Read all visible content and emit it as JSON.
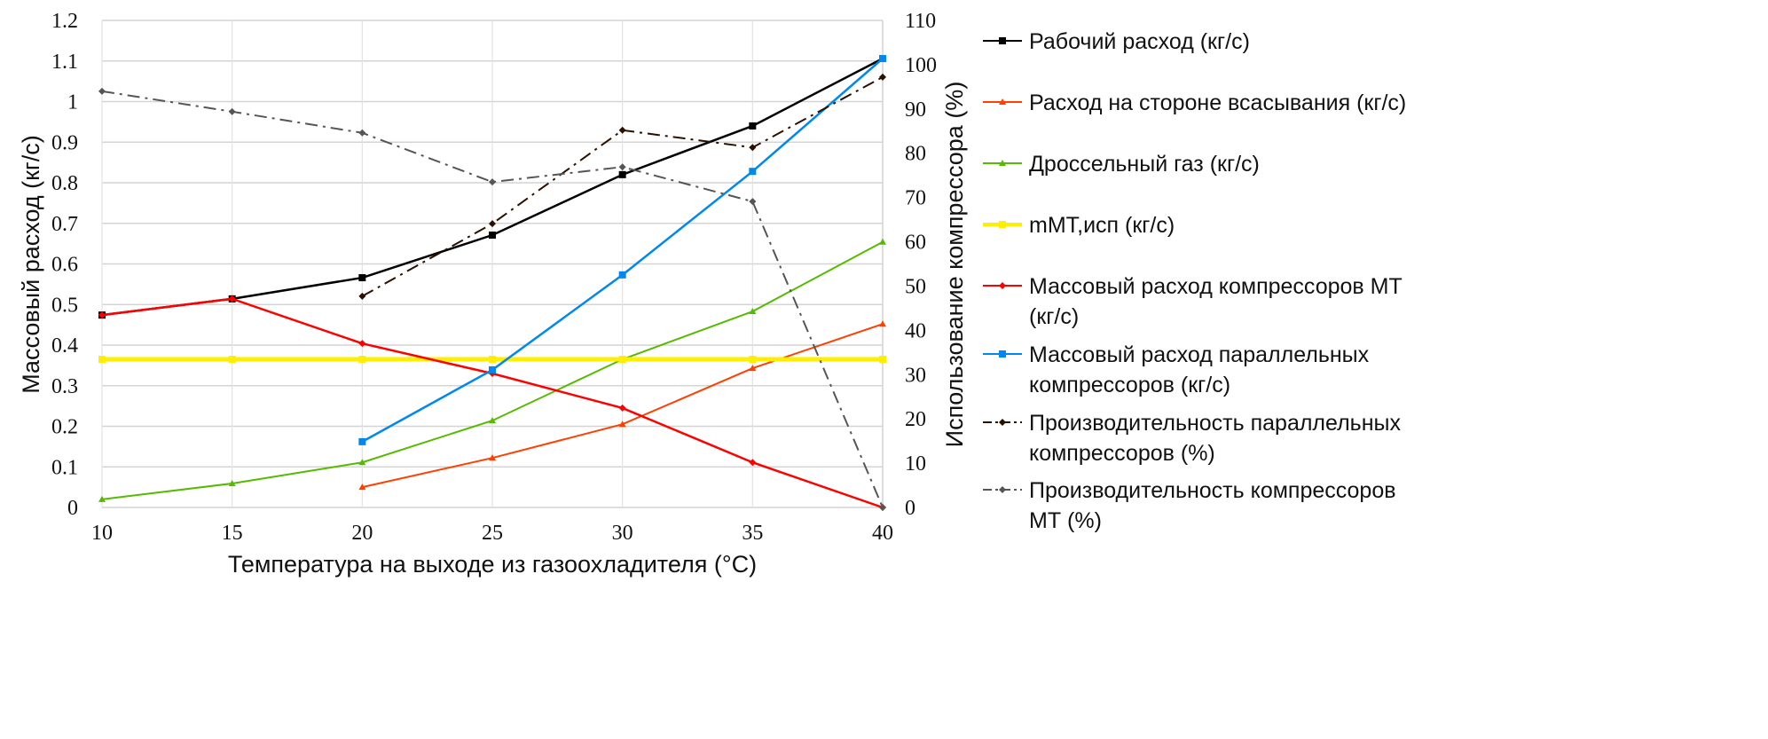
{
  "chart_data": {
    "type": "line",
    "title": "",
    "xlabel": "Температура на выходе из газоохладителя (°C)",
    "ylabel": "Массовый расход (кг/с)",
    "y2label": "Использование компрессора (%)",
    "x": [
      10,
      15,
      20,
      25,
      30,
      35,
      40
    ],
    "xlim": [
      10,
      40
    ],
    "ylim": [
      0,
      1.2
    ],
    "y2lim": [
      0,
      110
    ],
    "xticks": [
      "10",
      "15",
      "20",
      "25",
      "30",
      "35",
      "40"
    ],
    "yticks": [
      "0",
      "0.1",
      "0.2",
      "0.3",
      "0.4",
      "0.5",
      "0.6",
      "0.7",
      "0.8",
      "0.9",
      "1",
      "1.1",
      "1.2"
    ],
    "y2ticks": [
      "0",
      "10",
      "20",
      "30",
      "40",
      "50",
      "60",
      "70",
      "80",
      "90",
      "100",
      "110"
    ],
    "grid": true,
    "legend_position": "right",
    "series": [
      {
        "name": "Рабочий расход (кг/с)",
        "axis": "left",
        "color": "#000000",
        "marker": "square",
        "dash": "",
        "values": [
          0.474,
          0.514,
          0.566,
          0.671,
          0.82,
          0.94,
          1.106
        ]
      },
      {
        "name": "Расход на стороне всасывания (кг/с)",
        "axis": "left",
        "color": "#ff4000",
        "marker": "triangle",
        "dash": "",
        "values": [
          null,
          null,
          0.05,
          0.122,
          0.205,
          0.343,
          0.452
        ]
      },
      {
        "name": "Дроссельный газ (кг/с)",
        "axis": "left",
        "color": "#55bb00",
        "marker": "triangle",
        "dash": "",
        "values": [
          0.02,
          0.059,
          0.111,
          0.214,
          0.365,
          0.483,
          0.654
        ]
      },
      {
        "name": "mМТ,исп (кг/с)",
        "axis": "left",
        "color": "#ffee00",
        "marker": "square",
        "dash": "",
        "values": [
          0.365,
          0.365,
          0.365,
          0.365,
          0.365,
          0.365,
          0.365
        ]
      },
      {
        "name": "Массовый расход компрессоров МТ (кг/с)",
        "axis": "left",
        "color": "#ff0000",
        "marker": "diamond",
        "dash": "",
        "values": [
          0.474,
          0.514,
          0.404,
          0.33,
          0.245,
          0.111,
          0
        ]
      },
      {
        "name": "Массовый расход параллельных компрессоров (кг/с)",
        "axis": "left",
        "color": "#0088ee",
        "marker": "square",
        "dash": "",
        "values": [
          null,
          null,
          0.162,
          0.339,
          0.573,
          0.828,
          1.106
        ]
      },
      {
        "name": "Производительность параллельных компрессоров (%)",
        "axis": "right",
        "color": "#2a1000",
        "marker": "diamond",
        "dash": "14,6,3,6",
        "values": [
          null,
          null,
          47.7,
          64.1,
          85.2,
          81.3,
          97.2
        ]
      },
      {
        "name": "Производительность компрессоров МТ (%)",
        "axis": "right",
        "color": "#555555",
        "marker": "diamond",
        "dash": "14,6,3,6",
        "values": [
          94,
          89.4,
          84.6,
          73.5,
          76.9,
          69.1,
          0
        ]
      }
    ],
    "legend_lines": [
      [
        "Рабочий расход (кг/с)"
      ],
      [
        "Расход на стороне всасывания (кг/с)"
      ],
      [
        "Дроссельный газ (кг/с)"
      ],
      [
        "mМТ,исп (кг/с)"
      ],
      [
        "Массовый расход компрессоров МТ",
        "(кг/с)"
      ],
      [
        "Массовый расход параллельных",
        "компрессоров (кг/с)"
      ],
      [
        "Производительность параллельных",
        "компрессоров (%)"
      ],
      [
        "Производительность компрессоров",
        "МТ (%)"
      ]
    ]
  }
}
